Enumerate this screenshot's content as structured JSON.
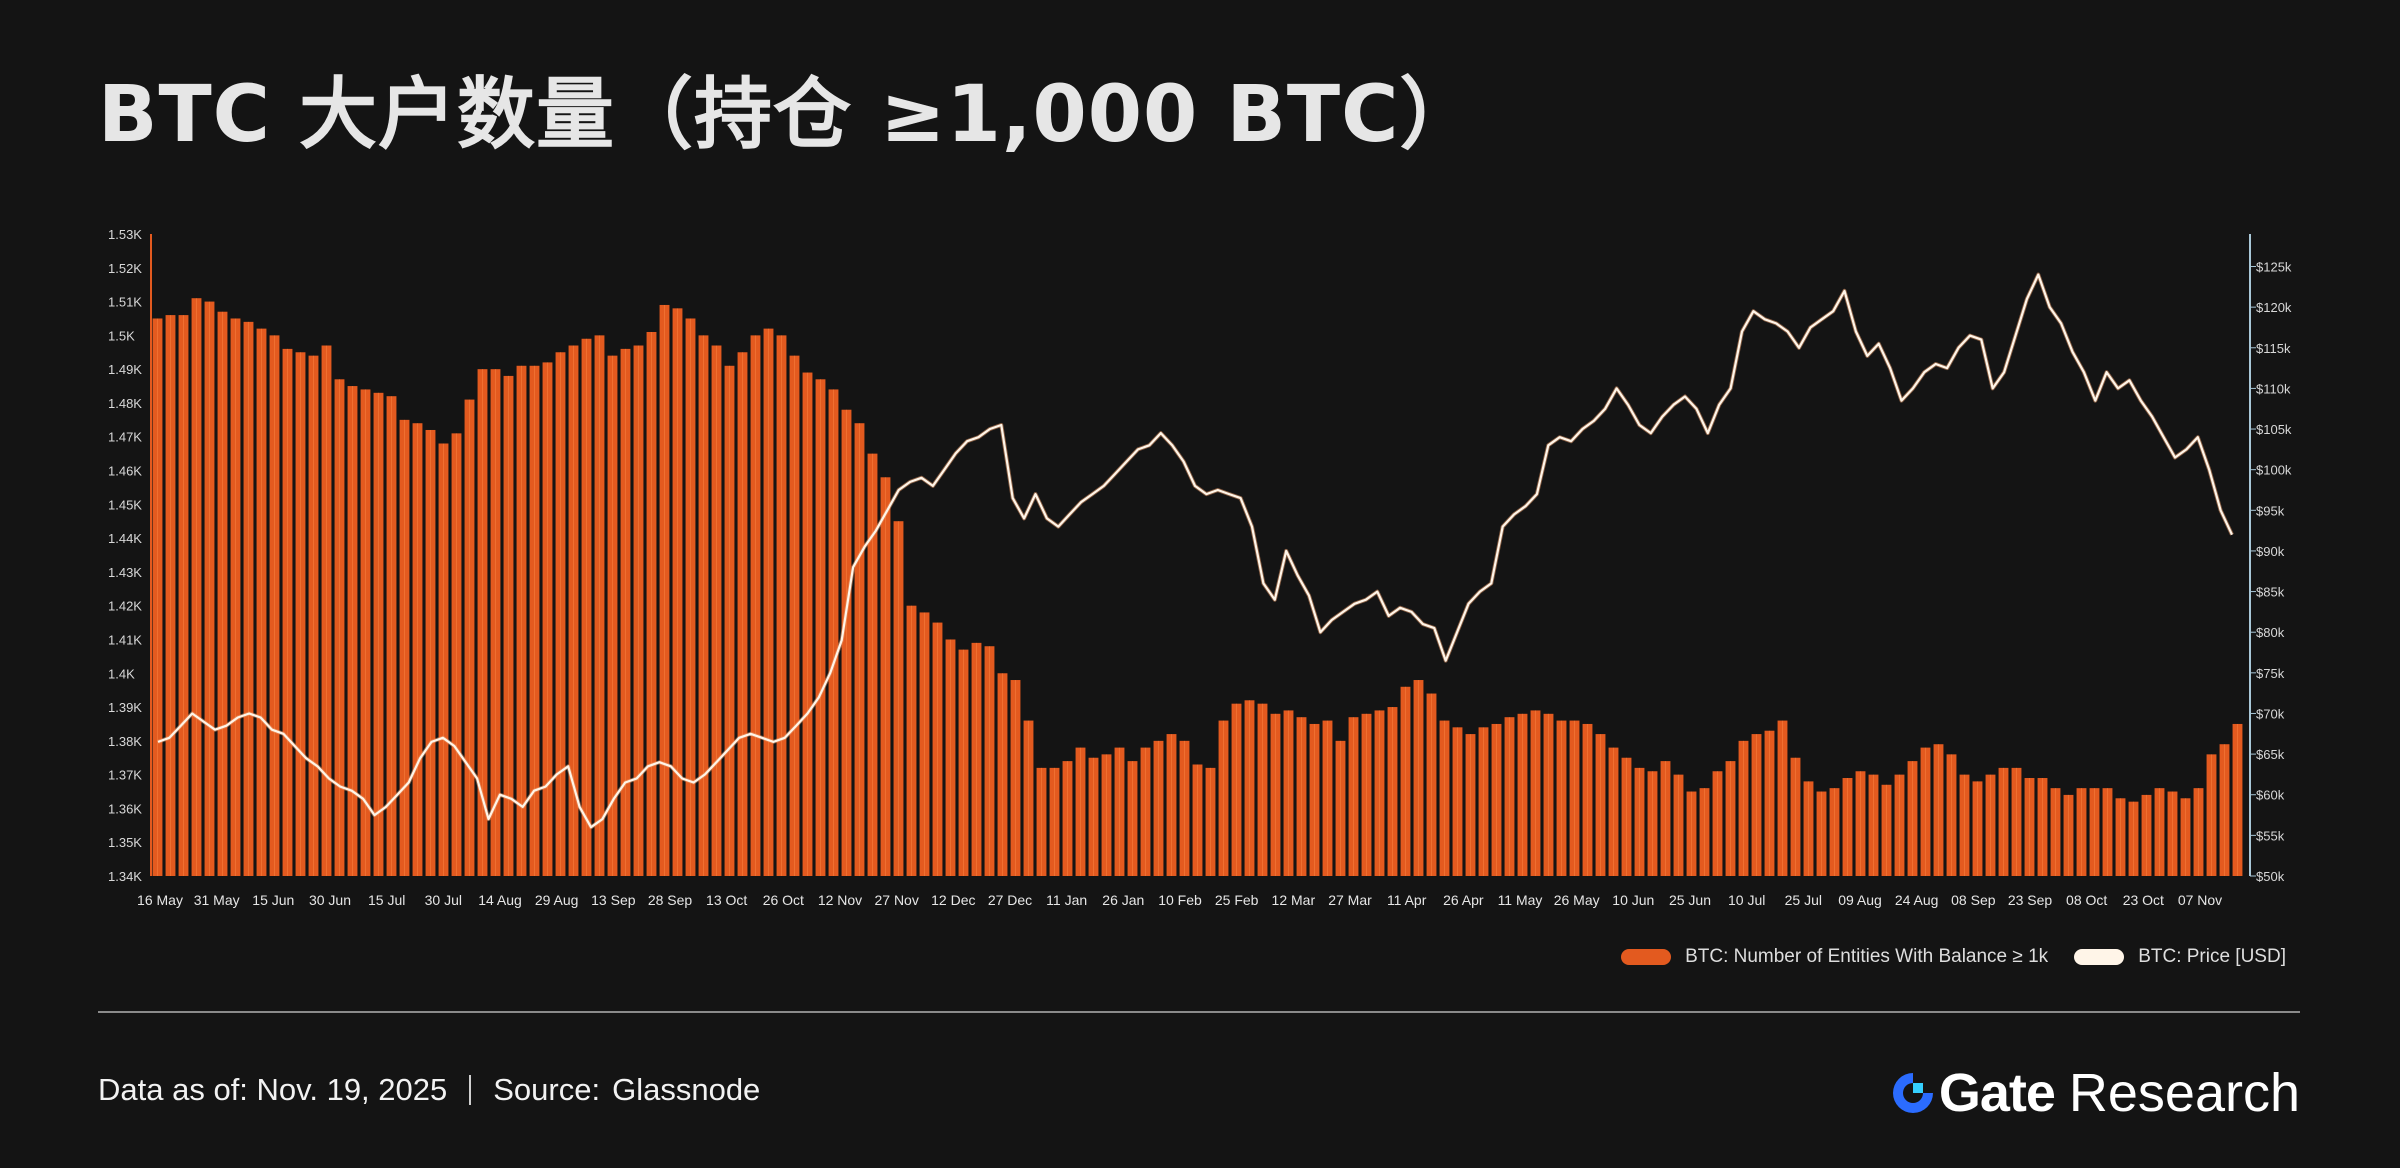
{
  "title": "BTC 大户数量（持仓 ≥1,000 BTC）",
  "colors": {
    "background": "#141414",
    "entities_bar": "#e35a1f",
    "price_line": "#fff5e8",
    "gate_blue": "#2b6cff"
  },
  "footer": {
    "data_as_of": "Data as of: Nov. 19, 2025",
    "source_label": "Source:",
    "source_value": "Glassnode"
  },
  "brand": {
    "name": "Gate",
    "suffix": "Research",
    "logo_icon": "gate-logo-icon"
  },
  "legend": {
    "placement": "bottom-right",
    "items": [
      {
        "label": "BTC: Number of Entities With Balance ≥ 1k",
        "color": "#e35a1f"
      },
      {
        "label": "BTC: Price [USD]",
        "color": "#fff5e8"
      }
    ]
  },
  "chart_data": {
    "type": "bar",
    "x_tick_labels": [
      "16 May",
      "31 May",
      "15 Jun",
      "30 Jun",
      "15 Jul",
      "30 Jul",
      "14 Aug",
      "29 Aug",
      "13 Sep",
      "28 Sep",
      "13 Oct",
      "26 Oct",
      "12 Nov",
      "27 Nov",
      "12 Dec",
      "27 Dec",
      "11 Jan",
      "26 Jan",
      "10 Feb",
      "25 Feb",
      "12 Mar",
      "27 Mar",
      "11 Apr",
      "26 Apr",
      "11 May",
      "26 May",
      "10 Jun",
      "25 Jun",
      "10 Jul",
      "25 Jul",
      "09 Aug",
      "24 Aug",
      "08 Sep",
      "23 Sep",
      "08 Oct",
      "23 Oct",
      "07 Nov"
    ],
    "y_left_tick_labels": [
      "1.34K",
      "1.35K",
      "1.36K",
      "1.37K",
      "1.38K",
      "1.39K",
      "1.4K",
      "1.41K",
      "1.42K",
      "1.43K",
      "1.44K",
      "1.45K",
      "1.46K",
      "1.47K",
      "1.48K",
      "1.49K",
      "1.5K",
      "1.51K",
      "1.52K",
      "1.53K"
    ],
    "y_left_range": [
      1340,
      1530
    ],
    "y_right_tick_labels": [
      "$50k",
      "$55k",
      "$60k",
      "$65k",
      "$70k",
      "$75k",
      "$80k",
      "$85k",
      "$90k",
      "$95k",
      "$100k",
      "$105k",
      "$110k",
      "$115k",
      "$120k",
      "$125k"
    ],
    "y_right_range": [
      50000,
      129000
    ],
    "grid": false,
    "series": [
      {
        "name": "BTC: Number of Entities With Balance ≥ 1k",
        "type": "bar",
        "axis": "left",
        "values": [
          1505,
          1506,
          1506,
          1511,
          1510,
          1507,
          1505,
          1504,
          1502,
          1500,
          1496,
          1495,
          1494,
          1497,
          1487,
          1485,
          1484,
          1483,
          1482,
          1475,
          1474,
          1472,
          1468,
          1471,
          1481,
          1490,
          1490,
          1488,
          1491,
          1491,
          1492,
          1495,
          1497,
          1499,
          1500,
          1494,
          1496,
          1497,
          1501,
          1509,
          1508,
          1505,
          1500,
          1497,
          1491,
          1495,
          1500,
          1502,
          1500,
          1494,
          1489,
          1487,
          1484,
          1478,
          1474,
          1465,
          1458,
          1445,
          1420,
          1418,
          1415,
          1410,
          1407,
          1409,
          1408,
          1400,
          1398,
          1386,
          1372,
          1372,
          1374,
          1378,
          1375,
          1376,
          1378,
          1374,
          1378,
          1380,
          1382,
          1380,
          1373,
          1372,
          1386,
          1391,
          1392,
          1391,
          1388,
          1389,
          1387,
          1385,
          1386,
          1380,
          1387,
          1388,
          1389,
          1390,
          1396,
          1398,
          1394,
          1386,
          1384,
          1382,
          1384,
          1385,
          1387,
          1388,
          1389,
          1388,
          1386,
          1386,
          1385,
          1382,
          1378,
          1375,
          1372,
          1371,
          1374,
          1370,
          1365,
          1366,
          1371,
          1374,
          1380,
          1382,
          1383,
          1386,
          1375,
          1368,
          1365,
          1366,
          1369,
          1371,
          1370,
          1367,
          1370,
          1374,
          1378,
          1379,
          1376,
          1370,
          1368,
          1370,
          1372,
          1372,
          1369,
          1369,
          1366,
          1364,
          1366,
          1366,
          1366,
          1363,
          1362,
          1364,
          1366,
          1365,
          1363,
          1366,
          1376,
          1379,
          1385
        ]
      },
      {
        "name": "BTC: Price [USD]",
        "type": "line",
        "axis": "right",
        "values": [
          66500,
          67000,
          68500,
          70000,
          69000,
          68000,
          68500,
          69500,
          70000,
          69500,
          68000,
          67500,
          66000,
          64500,
          63500,
          62000,
          61000,
          60500,
          59500,
          57500,
          58500,
          60000,
          61500,
          64500,
          66500,
          67000,
          66000,
          64000,
          62000,
          57000,
          60000,
          59500,
          58500,
          60500,
          61000,
          62500,
          63500,
          58500,
          56000,
          57000,
          59500,
          61500,
          62000,
          63500,
          64000,
          63500,
          62000,
          61500,
          62500,
          64000,
          65500,
          67000,
          67500,
          67000,
          66500,
          67000,
          68500,
          70000,
          72000,
          75000,
          79000,
          88000,
          90500,
          92500,
          95000,
          97500,
          98500,
          99000,
          98000,
          100000,
          102000,
          103500,
          104000,
          105000,
          105500,
          96500,
          94000,
          97000,
          94000,
          93000,
          94500,
          96000,
          97000,
          98000,
          99500,
          101000,
          102500,
          103000,
          104500,
          103000,
          101000,
          98000,
          97000,
          97500,
          97000,
          96500,
          93000,
          86000,
          84000,
          90000,
          87000,
          84500,
          80000,
          81500,
          82500,
          83500,
          84000,
          85000,
          82000,
          83000,
          82500,
          81000,
          80500,
          76500,
          80000,
          83500,
          85000,
          86000,
          93000,
          94500,
          95500,
          97000,
          103000,
          104000,
          103500,
          105000,
          106000,
          107500,
          110000,
          108000,
          105500,
          104500,
          106500,
          108000,
          109000,
          107500,
          104500,
          108000,
          110000,
          117000,
          119500,
          118500,
          118000,
          117000,
          115000,
          117500,
          118500,
          119500,
          122000,
          117000,
          114000,
          115500,
          112500,
          108500,
          110000,
          112000,
          113000,
          112500,
          115000,
          116500,
          116000,
          110000,
          112000,
          116500,
          121000,
          124000,
          120000,
          118000,
          114500,
          112000,
          108500,
          112000,
          110000,
          111000,
          108500,
          106500,
          104000,
          101500,
          102500,
          104000,
          100000,
          95000,
          92000
        ]
      }
    ]
  }
}
